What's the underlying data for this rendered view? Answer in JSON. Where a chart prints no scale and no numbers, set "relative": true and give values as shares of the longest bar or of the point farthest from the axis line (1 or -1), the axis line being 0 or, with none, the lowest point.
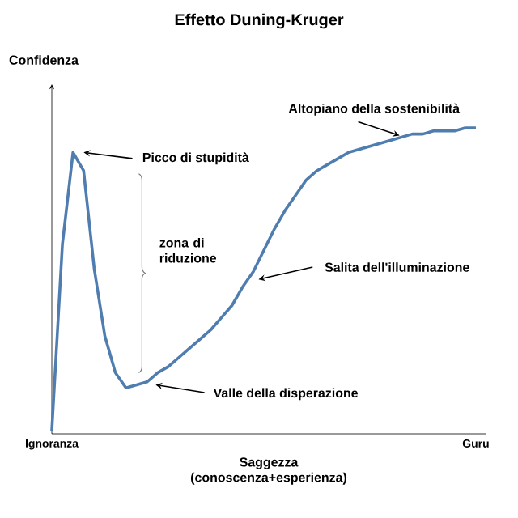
{
  "chart_data": {
    "type": "line",
    "title": "Effetto Duning-Kruger",
    "xlabel": "Saggezza (conoscenza+esperienza)",
    "ylabel": "Confidenza",
    "relative": true,
    "categories": [
      "Ignoranza",
      null,
      null,
      null,
      null,
      null,
      null,
      null,
      null,
      null,
      null,
      null,
      null,
      null,
      null,
      null,
      null,
      null,
      null,
      null,
      null,
      null,
      null,
      null,
      null,
      null,
      null,
      null,
      null,
      null,
      null,
      null,
      null,
      null,
      null,
      null,
      null,
      null,
      null,
      null,
      "Guru"
    ],
    "series": [
      {
        "color": "#4f7db0",
        "values": [
          0.01,
          0.62,
          0.92,
          0.86,
          0.54,
          0.32,
          0.2,
          0.15,
          0.16,
          0.17,
          0.2,
          0.22,
          0.25,
          0.28,
          0.31,
          0.34,
          0.38,
          0.42,
          0.48,
          0.53,
          0.6,
          0.67,
          0.73,
          0.78,
          0.83,
          0.86,
          0.88,
          0.9,
          0.92,
          0.93,
          0.94,
          0.95,
          0.96,
          0.97,
          0.98,
          0.98,
          0.99,
          0.99,
          0.99,
          1.0,
          1.0
        ]
      }
    ],
    "annotations": [
      "Picco di stupidità",
      "zona di riduzione",
      "Altopiano della sostenibilità",
      "Salita dell'illuminazione",
      "Valle della disperazione"
    ]
  }
}
